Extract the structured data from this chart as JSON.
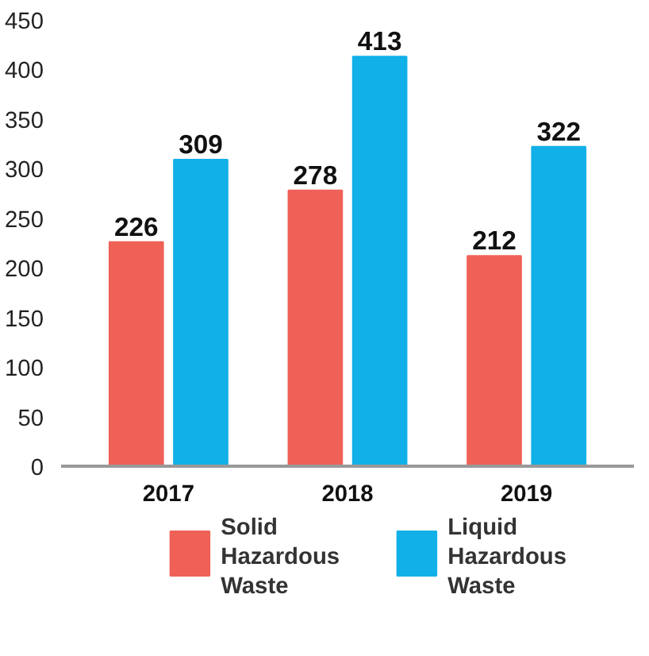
{
  "chart_data": {
    "type": "bar",
    "categories": [
      "2017",
      "2018",
      "2019"
    ],
    "series": [
      {
        "name": "Solid Hazardous Waste",
        "color": "#ef6157",
        "values": [
          226,
          278,
          212
        ]
      },
      {
        "name": "Liquid Hazardous Waste",
        "color": "#12b0e8",
        "values": [
          309,
          413,
          322
        ]
      }
    ],
    "ylim": [
      0,
      450
    ],
    "yticks": [
      0,
      50,
      100,
      150,
      200,
      250,
      300,
      350,
      400,
      450
    ],
    "data_labels": true,
    "grid": false,
    "legend": "bottom"
  }
}
